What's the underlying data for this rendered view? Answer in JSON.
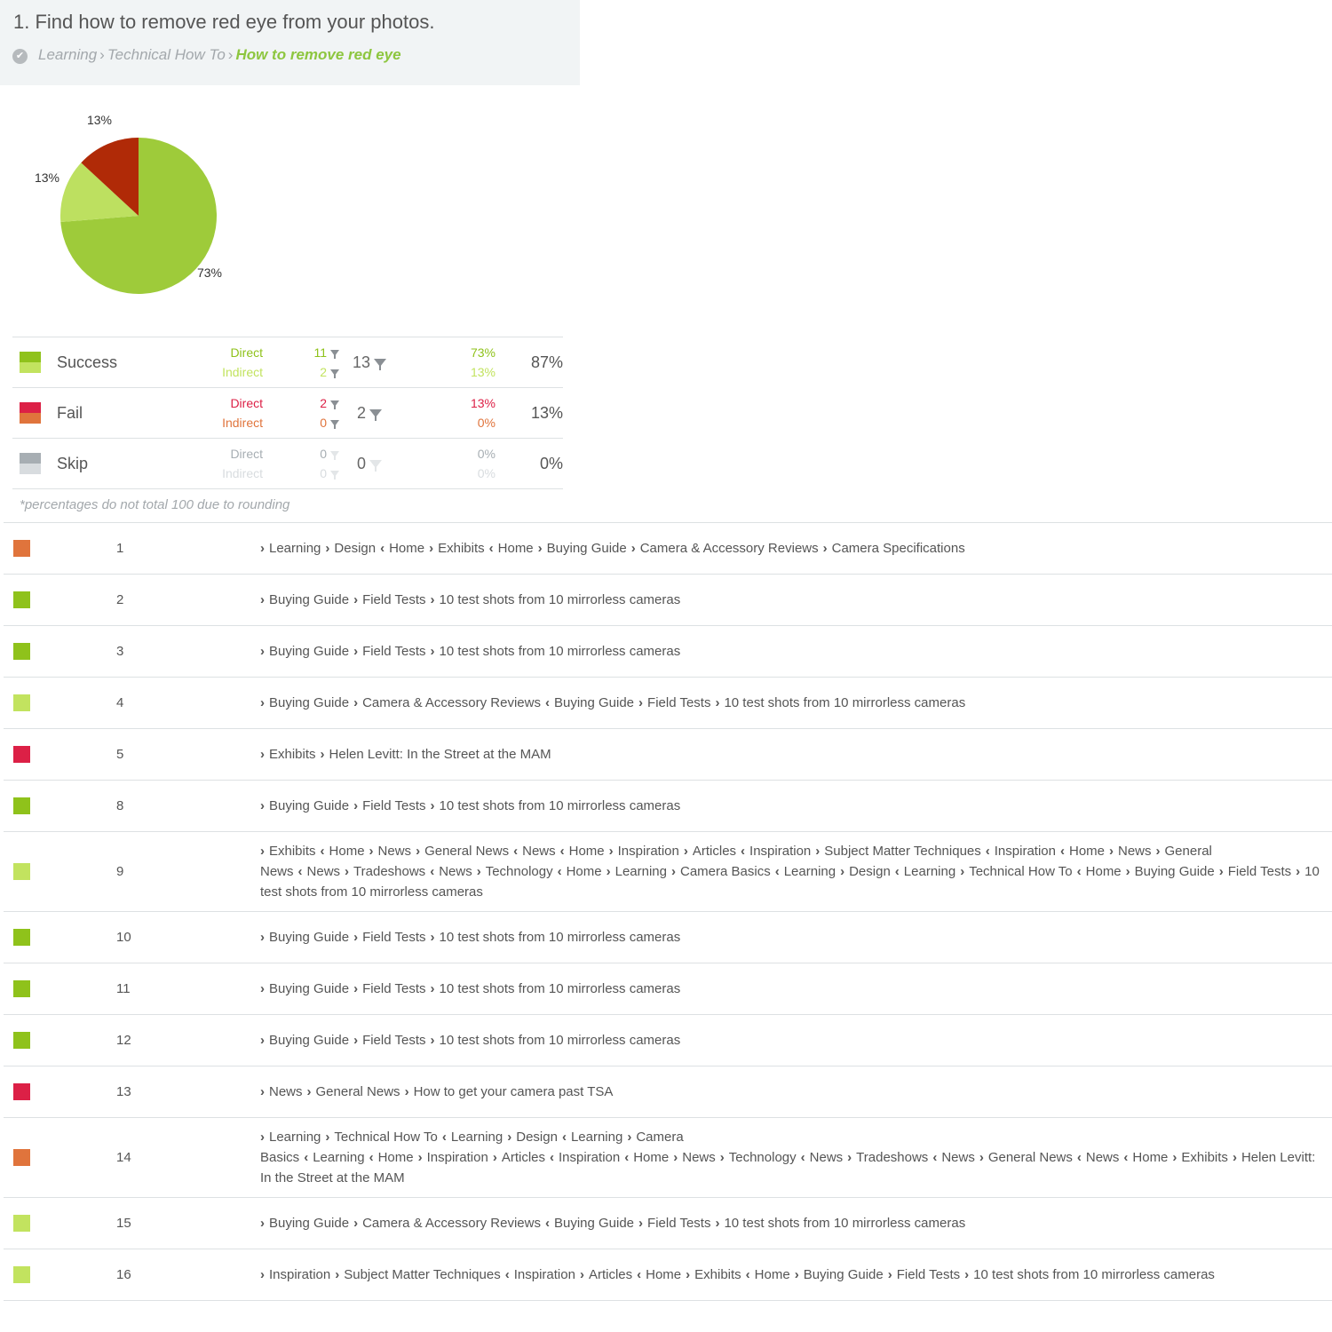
{
  "task": {
    "title": "1. Find how to remove red eye from your photos.",
    "breadcrumb": [
      "Learning",
      "Technical How To"
    ],
    "breadcrumb_current": "How to remove red eye",
    "separator": "›"
  },
  "chart_data": {
    "type": "pie",
    "slices": [
      {
        "label": "73%",
        "value": 73,
        "color": "#9ecb3a"
      },
      {
        "label": "13%",
        "value": 13,
        "color": "#bde060"
      },
      {
        "label": "13%",
        "value": 13,
        "color": "#b02a07"
      }
    ]
  },
  "summary": {
    "rows": [
      {
        "label": "Success",
        "direct_label": "Direct",
        "indirect_label": "Indirect",
        "direct_count": "11",
        "indirect_count": "2",
        "total": "13",
        "direct_pct": "73%",
        "indirect_pct": "13%",
        "overall": "87%",
        "colors": {
          "direct": "#8fc21b",
          "indirect": "#c2e35f",
          "total_filter": "#8a8f94"
        }
      },
      {
        "label": "Fail",
        "direct_label": "Direct",
        "indirect_label": "Indirect",
        "direct_count": "2",
        "indirect_count": "0",
        "total": "2",
        "direct_pct": "13%",
        "indirect_pct": "0%",
        "overall": "13%",
        "colors": {
          "direct": "#dc2046",
          "indirect": "#e0743c",
          "total_filter": "#8a8f94"
        }
      },
      {
        "label": "Skip",
        "direct_label": "Direct",
        "indirect_label": "Indirect",
        "direct_count": "0",
        "indirect_count": "0",
        "total": "0",
        "direct_pct": "0%",
        "indirect_pct": "0%",
        "overall": "0%",
        "colors": {
          "direct": "#a7aeb3",
          "indirect": "#d8dcdf",
          "total_filter": "#e3e6e8"
        }
      }
    ],
    "footnote": "*percentages do not total 100 due to rounding"
  },
  "paths": [
    {
      "num": "1",
      "color": "#e0743c",
      "steps": [
        [
          ">",
          "Learning"
        ],
        [
          ">",
          "Design"
        ],
        [
          "<",
          "Home"
        ],
        [
          ">",
          "Exhibits"
        ],
        [
          "<",
          "Home"
        ],
        [
          ">",
          "Buying Guide"
        ],
        [
          ">",
          "Camera & Accessory Reviews"
        ],
        [
          ">",
          "Camera Specifications"
        ]
      ]
    },
    {
      "num": "2",
      "color": "#8fc21b",
      "steps": [
        [
          ">",
          "Buying Guide"
        ],
        [
          ">",
          "Field Tests"
        ],
        [
          ">",
          "10 test shots from 10 mirrorless cameras"
        ]
      ]
    },
    {
      "num": "3",
      "color": "#8fc21b",
      "steps": [
        [
          ">",
          "Buying Guide"
        ],
        [
          ">",
          "Field Tests"
        ],
        [
          ">",
          "10 test shots from 10 mirrorless cameras"
        ]
      ]
    },
    {
      "num": "4",
      "color": "#c2e35f",
      "steps": [
        [
          ">",
          "Buying Guide"
        ],
        [
          ">",
          "Camera & Accessory Reviews"
        ],
        [
          "<",
          "Buying Guide"
        ],
        [
          ">",
          "Field Tests"
        ],
        [
          ">",
          "10 test shots from 10 mirrorless cameras"
        ]
      ]
    },
    {
      "num": "5",
      "color": "#dc2046",
      "steps": [
        [
          ">",
          "Exhibits"
        ],
        [
          ">",
          "Helen Levitt: In the Street at the MAM"
        ]
      ]
    },
    {
      "num": "8",
      "color": "#8fc21b",
      "steps": [
        [
          ">",
          "Buying Guide"
        ],
        [
          ">",
          "Field Tests"
        ],
        [
          ">",
          "10 test shots from 10 mirrorless cameras"
        ]
      ]
    },
    {
      "num": "9",
      "color": "#c2e35f",
      "steps": [
        [
          ">",
          "Exhibits"
        ],
        [
          "<",
          "Home"
        ],
        [
          ">",
          "News"
        ],
        [
          ">",
          "General News"
        ],
        [
          "<",
          "News"
        ],
        [
          "<",
          "Home"
        ],
        [
          ">",
          "Inspiration"
        ],
        [
          ">",
          "Articles"
        ],
        [
          "<",
          "Inspiration"
        ],
        [
          ">",
          "Subject Matter Techniques"
        ],
        [
          "<",
          "Inspiration"
        ],
        [
          "<",
          "Home"
        ],
        [
          ">",
          "News"
        ],
        [
          ">",
          "General News"
        ],
        [
          "<",
          "News"
        ],
        [
          ">",
          "Tradeshows"
        ],
        [
          "<",
          "News"
        ],
        [
          ">",
          "Technology"
        ],
        [
          "<",
          "Home"
        ],
        [
          ">",
          "Learning"
        ],
        [
          ">",
          "Camera Basics"
        ],
        [
          "<",
          "Learning"
        ],
        [
          ">",
          "Design"
        ],
        [
          "<",
          "Learning"
        ],
        [
          ">",
          "Technical How To"
        ],
        [
          "<",
          "Home"
        ],
        [
          ">",
          "Buying Guide"
        ],
        [
          ">",
          "Field Tests"
        ],
        [
          ">",
          "10 test shots from 10 mirrorless cameras"
        ]
      ]
    },
    {
      "num": "10",
      "color": "#8fc21b",
      "steps": [
        [
          ">",
          "Buying Guide"
        ],
        [
          ">",
          "Field Tests"
        ],
        [
          ">",
          "10 test shots from 10 mirrorless cameras"
        ]
      ]
    },
    {
      "num": "11",
      "color": "#8fc21b",
      "steps": [
        [
          ">",
          "Buying Guide"
        ],
        [
          ">",
          "Field Tests"
        ],
        [
          ">",
          "10 test shots from 10 mirrorless cameras"
        ]
      ]
    },
    {
      "num": "12",
      "color": "#8fc21b",
      "steps": [
        [
          ">",
          "Buying Guide"
        ],
        [
          ">",
          "Field Tests"
        ],
        [
          ">",
          "10 test shots from 10 mirrorless cameras"
        ]
      ]
    },
    {
      "num": "13",
      "color": "#dc2046",
      "steps": [
        [
          ">",
          "News"
        ],
        [
          ">",
          "General News"
        ],
        [
          ">",
          "How to get your camera past TSA"
        ]
      ]
    },
    {
      "num": "14",
      "color": "#e0743c",
      "steps": [
        [
          ">",
          "Learning"
        ],
        [
          ">",
          "Technical How To"
        ],
        [
          "<",
          "Learning"
        ],
        [
          ">",
          "Design"
        ],
        [
          "<",
          "Learning"
        ],
        [
          ">",
          "Camera Basics"
        ],
        [
          "<",
          "Learning"
        ],
        [
          "<",
          "Home"
        ],
        [
          ">",
          "Inspiration"
        ],
        [
          ">",
          "Articles"
        ],
        [
          "<",
          "Inspiration"
        ],
        [
          "<",
          "Home"
        ],
        [
          ">",
          "News"
        ],
        [
          ">",
          "Technology"
        ],
        [
          "<",
          "News"
        ],
        [
          ">",
          "Tradeshows"
        ],
        [
          "<",
          "News"
        ],
        [
          ">",
          "General News"
        ],
        [
          "<",
          "News"
        ],
        [
          "<",
          "Home"
        ],
        [
          ">",
          "Exhibits"
        ],
        [
          ">",
          "Helen Levitt: In the Street at the MAM"
        ]
      ]
    },
    {
      "num": "15",
      "color": "#c2e35f",
      "steps": [
        [
          ">",
          "Buying Guide"
        ],
        [
          ">",
          "Camera & Accessory Reviews"
        ],
        [
          "<",
          "Buying Guide"
        ],
        [
          ">",
          "Field Tests"
        ],
        [
          ">",
          "10 test shots from 10 mirrorless cameras"
        ]
      ]
    },
    {
      "num": "16",
      "color": "#c2e35f",
      "steps": [
        [
          ">",
          "Inspiration"
        ],
        [
          ">",
          "Subject Matter Techniques"
        ],
        [
          "<",
          "Inspiration"
        ],
        [
          ">",
          "Articles"
        ],
        [
          "<",
          "Home"
        ],
        [
          ">",
          "Exhibits"
        ],
        [
          "<",
          "Home"
        ],
        [
          ">",
          "Buying Guide"
        ],
        [
          ">",
          "Field Tests"
        ],
        [
          ">",
          "10 test shots from 10 mirrorless cameras"
        ]
      ]
    }
  ]
}
